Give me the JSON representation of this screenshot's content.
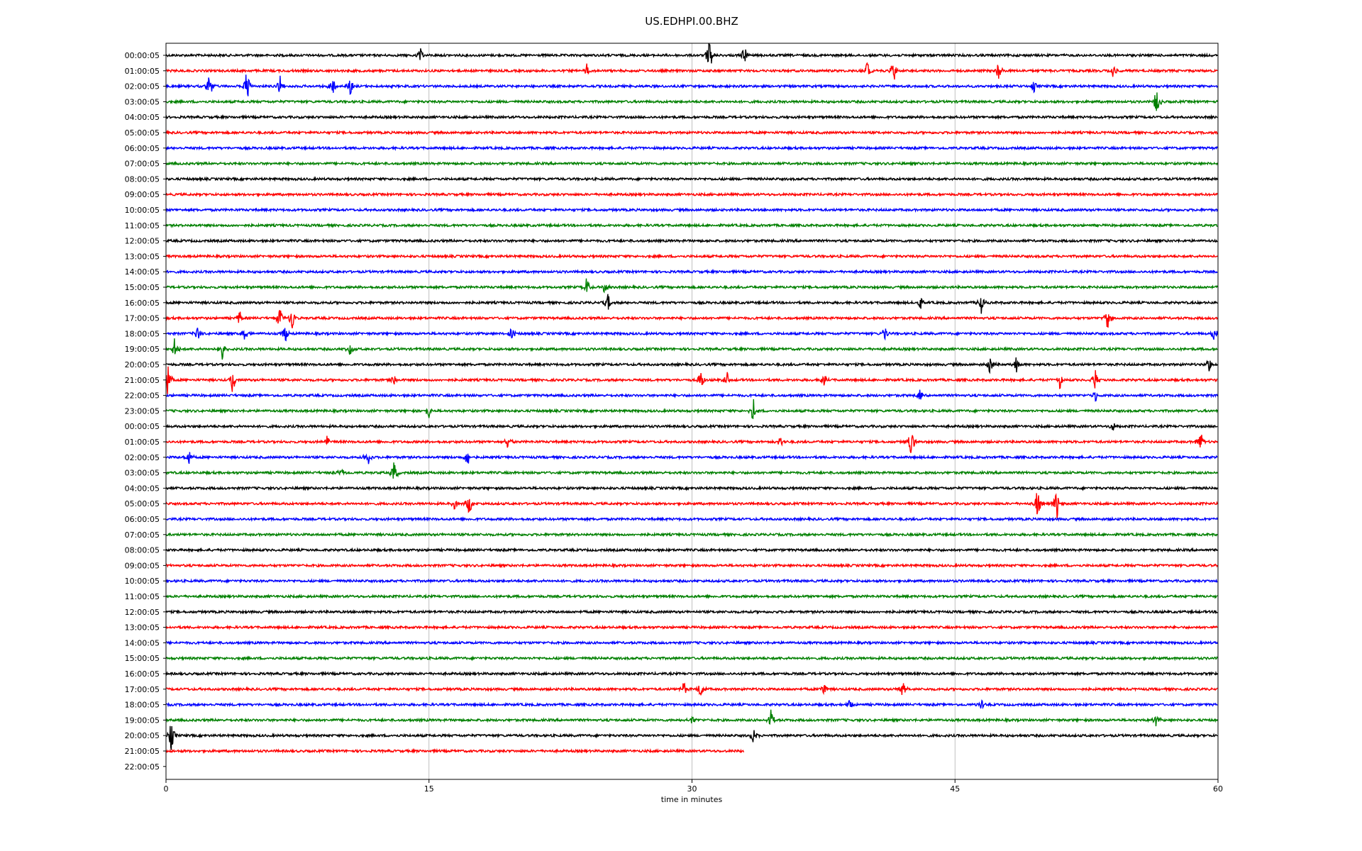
{
  "chart_data": {
    "type": "line",
    "title": "US.EDHPI.00.BHZ",
    "xlabel": "time in minutes",
    "ylabel": "",
    "xlim": [
      0,
      60
    ],
    "x_ticks": [
      "0",
      "15",
      "30",
      "45",
      "60"
    ],
    "grid": "vertical lines at x ticks",
    "row_colors": [
      "#000000",
      "#ff0000",
      "#0000ff",
      "#008000"
    ],
    "row_labels": [
      "00:00:05",
      "01:00:05",
      "02:00:05",
      "03:00:05",
      "04:00:05",
      "05:00:05",
      "06:00:05",
      "07:00:05",
      "08:00:05",
      "09:00:05",
      "10:00:05",
      "11:00:05",
      "12:00:05",
      "13:00:05",
      "14:00:05",
      "15:00:05",
      "16:00:05",
      "17:00:05",
      "18:00:05",
      "19:00:05",
      "20:00:05",
      "21:00:05",
      "22:00:05",
      "23:00:05",
      "00:00:05",
      "01:00:05",
      "02:00:05",
      "03:00:05",
      "04:00:05",
      "05:00:05",
      "06:00:05",
      "07:00:05",
      "08:00:05",
      "09:00:05",
      "10:00:05",
      "11:00:05",
      "12:00:05",
      "13:00:05",
      "14:00:05",
      "15:00:05",
      "16:00:05",
      "17:00:05",
      "18:00:05",
      "19:00:05",
      "20:00:05",
      "21:00:05",
      "22:00:05"
    ],
    "last_trace_end_minute": 33,
    "events": [
      {
        "row": 0,
        "minute": 14.5,
        "amp": 0.4
      },
      {
        "row": 0,
        "minute": 31,
        "amp": 1.0
      },
      {
        "row": 0,
        "minute": 33,
        "amp": 0.5
      },
      {
        "row": 1,
        "minute": 24,
        "amp": 0.4
      },
      {
        "row": 1,
        "minute": 40,
        "amp": 0.5
      },
      {
        "row": 1,
        "minute": 41.5,
        "amp": 0.7
      },
      {
        "row": 1,
        "minute": 47.5,
        "amp": 0.5
      },
      {
        "row": 1,
        "minute": 54,
        "amp": 0.5
      },
      {
        "row": 2,
        "minute": 2.5,
        "amp": 0.7
      },
      {
        "row": 2,
        "minute": 4.6,
        "amp": 1.0
      },
      {
        "row": 2,
        "minute": 6.5,
        "amp": 0.6
      },
      {
        "row": 2,
        "minute": 9.5,
        "amp": 0.5
      },
      {
        "row": 2,
        "minute": 10.5,
        "amp": 0.6
      },
      {
        "row": 2,
        "minute": 49.5,
        "amp": 0.3
      },
      {
        "row": 3,
        "minute": 56.5,
        "amp": 0.7
      },
      {
        "row": 15,
        "minute": 24,
        "amp": 0.5
      },
      {
        "row": 15,
        "minute": 25,
        "amp": 0.4
      },
      {
        "row": 16,
        "minute": 25.2,
        "amp": 0.5
      },
      {
        "row": 16,
        "minute": 43,
        "amp": 0.5
      },
      {
        "row": 16,
        "minute": 46.5,
        "amp": 0.5
      },
      {
        "row": 17,
        "minute": 4.2,
        "amp": 0.4
      },
      {
        "row": 17,
        "minute": 6.5,
        "amp": 0.6
      },
      {
        "row": 17,
        "minute": 7.2,
        "amp": 0.7
      },
      {
        "row": 17,
        "minute": 53.7,
        "amp": 0.6
      },
      {
        "row": 18,
        "minute": 1.8,
        "amp": 0.4
      },
      {
        "row": 18,
        "minute": 4.5,
        "amp": 0.5
      },
      {
        "row": 18,
        "minute": 6.8,
        "amp": 0.5
      },
      {
        "row": 18,
        "minute": 19.7,
        "amp": 0.4
      },
      {
        "row": 18,
        "minute": 41,
        "amp": 0.4
      },
      {
        "row": 18,
        "minute": 59.8,
        "amp": 0.6
      },
      {
        "row": 19,
        "minute": 0.5,
        "amp": 0.6
      },
      {
        "row": 19,
        "minute": 3.2,
        "amp": 0.5
      },
      {
        "row": 19,
        "minute": 10.5,
        "amp": 0.5
      },
      {
        "row": 20,
        "minute": 47,
        "amp": 0.6
      },
      {
        "row": 20,
        "minute": 48.5,
        "amp": 0.4
      },
      {
        "row": 20,
        "minute": 59.5,
        "amp": 0.4
      },
      {
        "row": 21,
        "minute": 0.1,
        "amp": 1.0
      },
      {
        "row": 21,
        "minute": 3.8,
        "amp": 0.7
      },
      {
        "row": 21,
        "minute": 13,
        "amp": 0.4
      },
      {
        "row": 21,
        "minute": 30.5,
        "amp": 0.6
      },
      {
        "row": 21,
        "minute": 32,
        "amp": 0.4
      },
      {
        "row": 21,
        "minute": 37.5,
        "amp": 0.4
      },
      {
        "row": 21,
        "minute": 51,
        "amp": 0.5
      },
      {
        "row": 21,
        "minute": 53,
        "amp": 0.6
      },
      {
        "row": 22,
        "minute": 43,
        "amp": 0.3
      },
      {
        "row": 22,
        "minute": 53,
        "amp": 0.3
      },
      {
        "row": 23,
        "minute": 15,
        "amp": 0.4
      },
      {
        "row": 23,
        "minute": 33.5,
        "amp": 0.6
      },
      {
        "row": 24,
        "minute": 54,
        "amp": 0.4
      },
      {
        "row": 25,
        "minute": 9.2,
        "amp": 0.3
      },
      {
        "row": 25,
        "minute": 19.5,
        "amp": 0.5
      },
      {
        "row": 25,
        "minute": 35,
        "amp": 0.4
      },
      {
        "row": 25,
        "minute": 42.5,
        "amp": 0.8
      },
      {
        "row": 25,
        "minute": 59,
        "amp": 0.7
      },
      {
        "row": 26,
        "minute": 1.3,
        "amp": 0.5
      },
      {
        "row": 26,
        "minute": 11.5,
        "amp": 0.5
      },
      {
        "row": 26,
        "minute": 17.2,
        "amp": 0.5
      },
      {
        "row": 27,
        "minute": 10,
        "amp": 0.3
      },
      {
        "row": 27,
        "minute": 13,
        "amp": 0.7
      },
      {
        "row": 29,
        "minute": 16.5,
        "amp": 0.4
      },
      {
        "row": 29,
        "minute": 17.3,
        "amp": 0.6
      },
      {
        "row": 29,
        "minute": 49.7,
        "amp": 0.8
      },
      {
        "row": 29,
        "minute": 50.8,
        "amp": 1.0
      },
      {
        "row": 41,
        "minute": 29.5,
        "amp": 0.5
      },
      {
        "row": 41,
        "minute": 30.5,
        "amp": 0.5
      },
      {
        "row": 41,
        "minute": 37.5,
        "amp": 0.4
      },
      {
        "row": 41,
        "minute": 42,
        "amp": 0.5
      },
      {
        "row": 42,
        "minute": 39,
        "amp": 0.3
      },
      {
        "row": 42,
        "minute": 46.5,
        "amp": 0.3
      },
      {
        "row": 43,
        "minute": 30,
        "amp": 0.3
      },
      {
        "row": 43,
        "minute": 34.5,
        "amp": 0.5
      },
      {
        "row": 43,
        "minute": 56.5,
        "amp": 0.4
      },
      {
        "row": 44,
        "minute": 0.3,
        "amp": 0.8
      },
      {
        "row": 44,
        "minute": 33.5,
        "amp": 0.5
      }
    ]
  }
}
